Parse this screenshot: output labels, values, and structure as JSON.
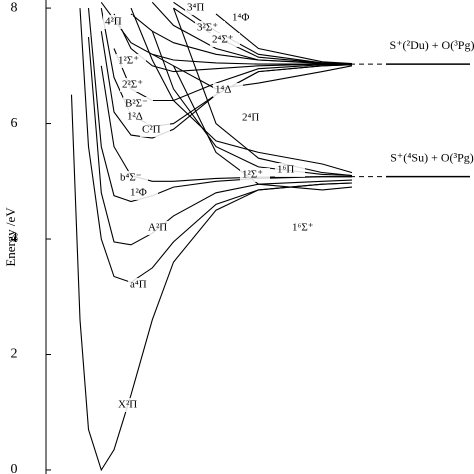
{
  "chart_data": {
    "type": "line",
    "y_label": "Energy /eV",
    "ylim": [
      -0.07,
      8.14
    ],
    "yticks": [
      0,
      2,
      4,
      6,
      8
    ],
    "xlim": [
      0,
      8
    ],
    "x": [
      0.6,
      0.8,
      1.0,
      1.3,
      1.6,
      2.0,
      2.5,
      3.0,
      4.0,
      5.0,
      6.5,
      7.2
    ],
    "color": "#000000",
    "series": [
      {
        "name": "X²Π",
        "values": [
          6.5,
          2.6,
          0.7,
          0.0,
          0.35,
          1.3,
          2.6,
          3.6,
          4.5,
          4.85,
          4.95,
          4.97
        ]
      },
      {
        "name": "a⁴Π",
        "values": [
          null,
          8.0,
          5.6,
          4.0,
          3.35,
          3.25,
          3.5,
          3.95,
          4.6,
          4.85,
          4.95,
          4.97
        ]
      },
      {
        "name": "A²Π",
        "values": [
          null,
          null,
          7.5,
          4.8,
          3.95,
          3.9,
          4.1,
          4.4,
          4.8,
          4.95,
          5.0,
          5.02
        ]
      },
      {
        "name": "1²Φ",
        "values": [
          null,
          null,
          8.0,
          5.6,
          4.75,
          4.65,
          4.75,
          4.9,
          5.0,
          5.05,
          5.08,
          5.08
        ]
      },
      {
        "name": "b⁴Σ⁻",
        "values": [
          null,
          null,
          null,
          7.0,
          5.6,
          5.1,
          5.0,
          5.0,
          5.05,
          5.07,
          5.08,
          5.08
        ]
      },
      {
        "name": "C²Π",
        "values": [
          null,
          null,
          null,
          7.6,
          6.2,
          5.8,
          5.75,
          5.9,
          6.5,
          6.9,
          7.0,
          7.02
        ]
      },
      {
        "name": "1²Δ",
        "values": [
          null,
          null,
          null,
          8.0,
          6.8,
          6.15,
          5.95,
          6.0,
          6.5,
          6.9,
          7.0,
          7.02
        ]
      },
      {
        "name": "B²Σ⁻",
        "values": [
          null,
          null,
          null,
          null,
          7.3,
          6.6,
          6.4,
          6.4,
          6.7,
          6.95,
          7.02,
          7.03
        ]
      },
      {
        "name": "2²Σ⁺",
        "values": [
          null,
          null,
          null,
          null,
          7.9,
          7.3,
          7.0,
          6.9,
          6.95,
          7.0,
          7.03,
          7.03
        ]
      },
      {
        "name": "1²Σ⁺",
        "values": [
          null,
          null,
          null,
          null,
          null,
          7.9,
          7.6,
          7.4,
          7.2,
          7.1,
          7.05,
          7.03
        ]
      },
      {
        "name": "4²Π",
        "values": [
          null,
          null,
          null,
          8.1,
          7.8,
          7.4,
          7.2,
          7.1,
          7.05,
          7.03,
          7.03,
          7.03
        ]
      },
      {
        "name": "3⁴Π",
        "values": [
          null,
          null,
          null,
          null,
          null,
          null,
          8.1,
          7.7,
          7.3,
          7.1,
          7.04,
          7.03
        ]
      },
      {
        "name": "3²Σ⁺",
        "values": [
          null,
          null,
          null,
          null,
          null,
          null,
          null,
          8.0,
          7.5,
          7.15,
          7.05,
          7.03
        ]
      },
      {
        "name": "1⁴Φ",
        "values": [
          null,
          null,
          null,
          null,
          null,
          null,
          null,
          null,
          7.9,
          7.3,
          7.07,
          7.04
        ]
      },
      {
        "name": "2⁴Σ⁺",
        "values": [
          null,
          null,
          null,
          null,
          null,
          null,
          null,
          8.1,
          7.6,
          7.2,
          7.05,
          7.03
        ]
      },
      {
        "name": "1⁴Δ",
        "values": [
          null,
          null,
          null,
          null,
          null,
          null,
          7.2,
          7.0,
          6.6,
          6.7,
          6.9,
          7.0
        ]
      },
      {
        "name": "2⁴Π",
        "values": [
          null,
          null,
          null,
          null,
          null,
          8.0,
          7.1,
          6.4,
          5.7,
          5.5,
          5.3,
          5.15
        ]
      },
      {
        "name": "1²Σ⁺",
        "values": [
          null,
          null,
          null,
          null,
          null,
          null,
          7.6,
          6.6,
          5.6,
          5.25,
          5.12,
          5.1
        ]
      },
      {
        "name": "1⁶Π",
        "values": [
          null,
          null,
          null,
          null,
          null,
          null,
          null,
          8.0,
          6.0,
          5.4,
          5.15,
          5.1
        ]
      },
      {
        "name": "1⁶Σ⁺",
        "values": [
          null,
          null,
          null,
          null,
          null,
          null,
          null,
          7.0,
          5.5,
          4.95,
          4.85,
          4.9
        ]
      }
    ],
    "asymptotes": [
      {
        "label": "S⁺(²Du) + O(³Pg)",
        "value": 7.03
      },
      {
        "label": "S⁺(⁴Su) + O(³Pg)",
        "value": 5.08
      }
    ]
  }
}
